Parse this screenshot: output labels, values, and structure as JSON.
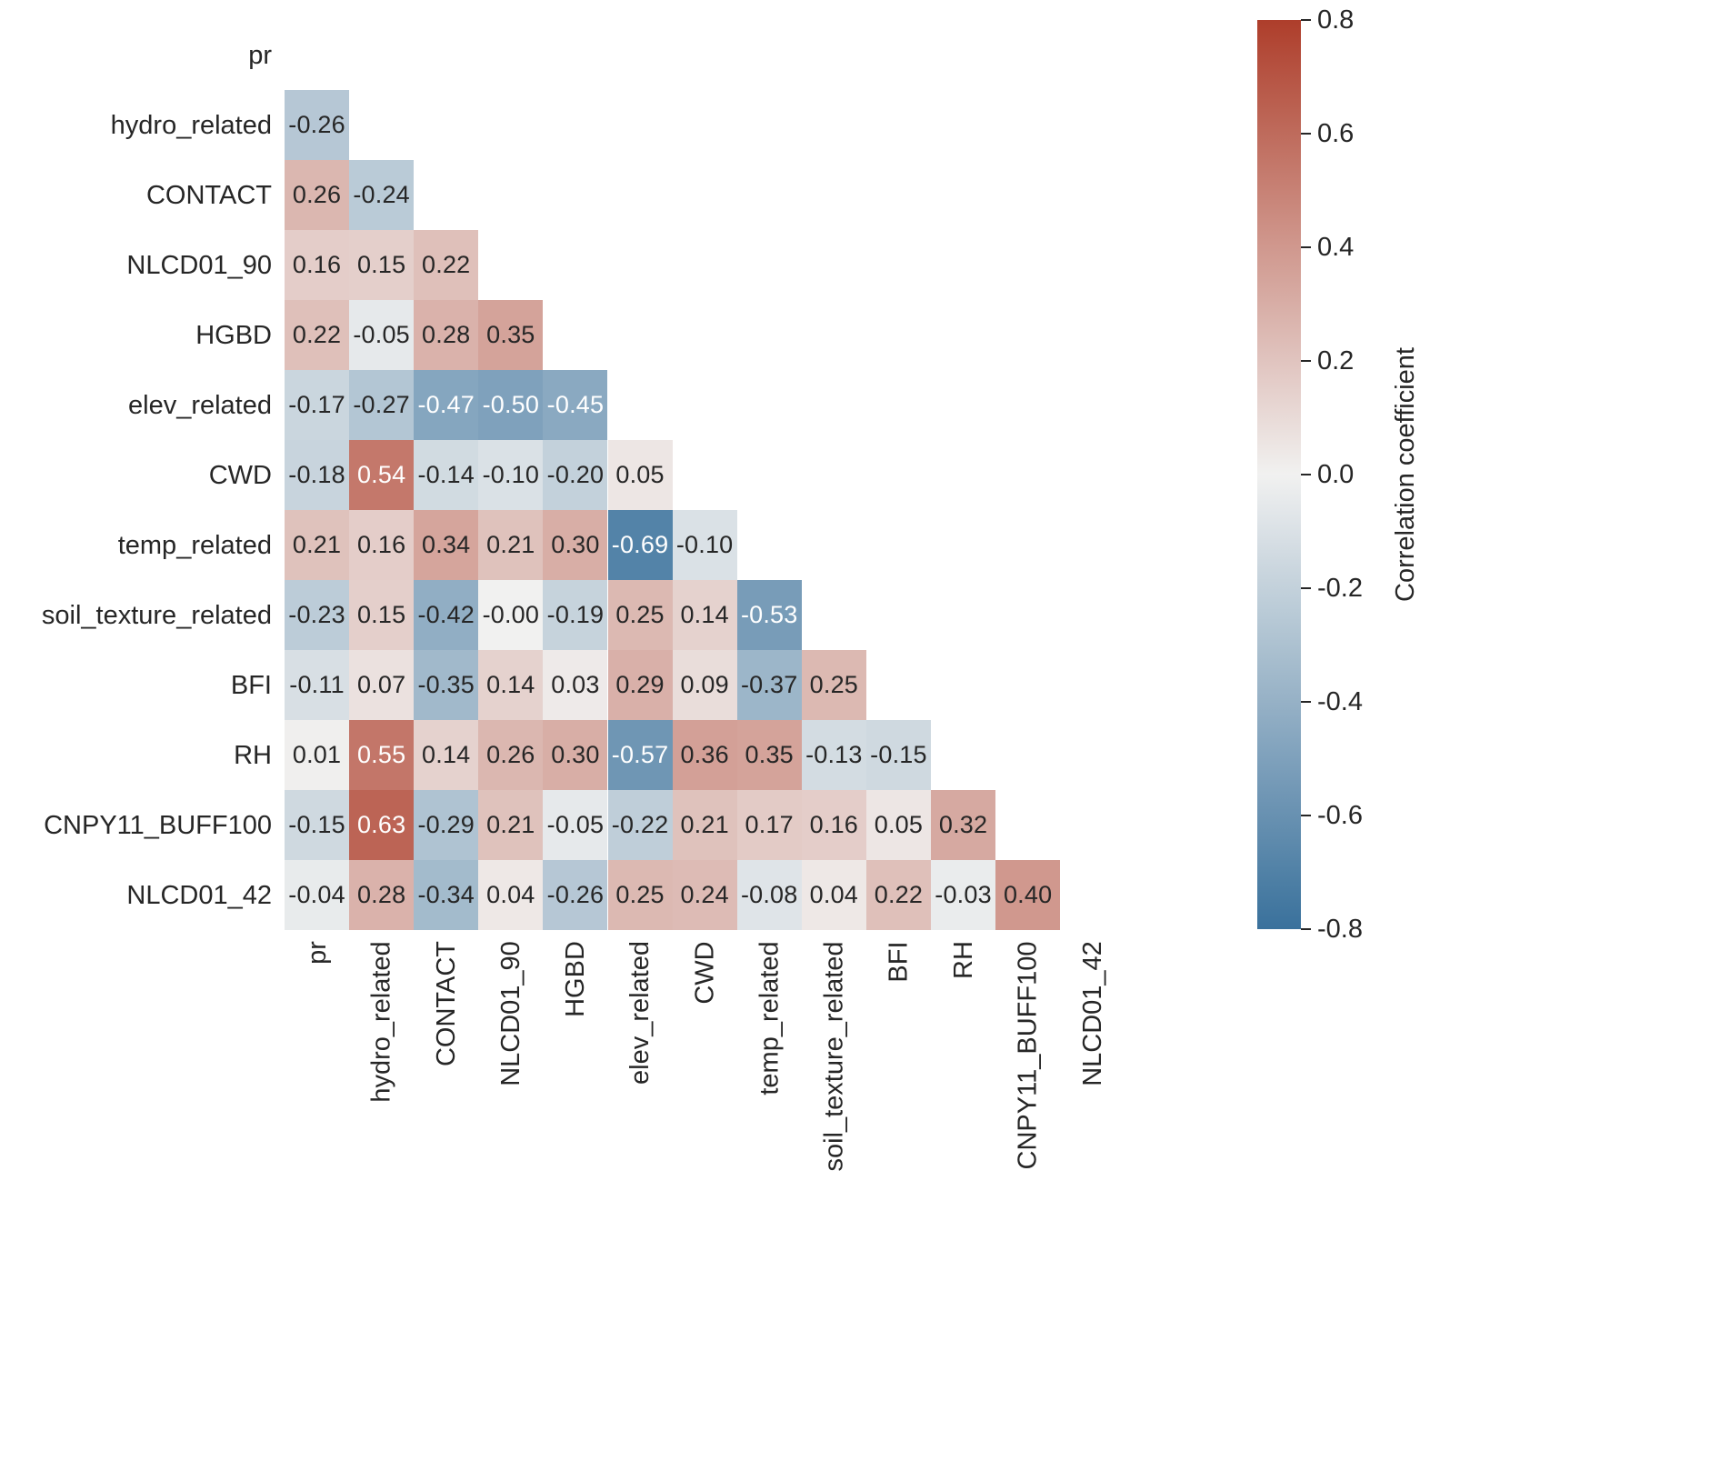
{
  "chart_data": {
    "type": "heatmap",
    "title": "",
    "variables": [
      "pr",
      "hydro_related",
      "CONTACT",
      "NLCD01_90",
      "HGBD",
      "elev_related",
      "CWD",
      "temp_related",
      "soil_texture_related",
      "BFI",
      "RH",
      "CNPY11_BUFF100",
      "NLCD01_42"
    ],
    "matrix_lower_triangle": [
      [],
      [
        "-0.26"
      ],
      [
        "0.26",
        "-0.24"
      ],
      [
        "0.16",
        "0.15",
        "0.22"
      ],
      [
        "0.22",
        "-0.05",
        "0.28",
        "0.35"
      ],
      [
        "-0.17",
        "-0.27",
        "-0.47",
        "-0.50",
        "-0.45"
      ],
      [
        "-0.18",
        "0.54",
        "-0.14",
        "-0.10",
        "-0.20",
        "0.05"
      ],
      [
        "0.21",
        "0.16",
        "0.34",
        "0.21",
        "0.30",
        "-0.69",
        "-0.10"
      ],
      [
        "-0.23",
        "0.15",
        "-0.42",
        "-0.00",
        "-0.19",
        "0.25",
        "0.14",
        "-0.53"
      ],
      [
        "-0.11",
        "0.07",
        "-0.35",
        "0.14",
        "0.03",
        "0.29",
        "0.09",
        "-0.37",
        "0.25"
      ],
      [
        "0.01",
        "0.55",
        "0.14",
        "0.26",
        "0.30",
        "-0.57",
        "0.36",
        "0.35",
        "-0.13",
        "-0.15"
      ],
      [
        "-0.15",
        "0.63",
        "-0.29",
        "0.21",
        "-0.05",
        "-0.22",
        "0.21",
        "0.17",
        "0.16",
        "0.05",
        "0.32"
      ],
      [
        "-0.04",
        "0.28",
        "-0.34",
        "0.04",
        "-0.26",
        "0.25",
        "0.24",
        "-0.08",
        "0.04",
        "0.22",
        "-0.03",
        "0.40"
      ]
    ],
    "mask": "upper_triangle_and_diagonal",
    "colorbar": {
      "label": "Correlation coefficient",
      "ticks": [
        "0.8",
        "0.6",
        "0.4",
        "0.2",
        "0.0",
        "-0.2",
        "-0.4",
        "-0.6",
        "-0.8"
      ],
      "vmin": -0.8,
      "vmax": 0.8,
      "color_negative_end": "#3A719C",
      "color_center": "#F1F1F0",
      "color_positive_end": "#AE3E2B"
    },
    "annotation_text_dark": "#262626",
    "annotation_text_light": "#FFFFFF",
    "annotation_white_text_threshold": 0.45
  }
}
